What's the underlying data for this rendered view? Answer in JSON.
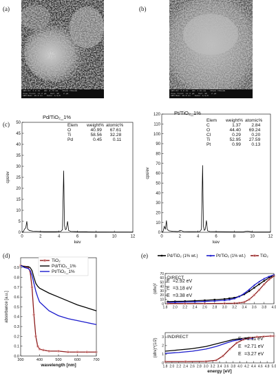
{
  "panels": {
    "a": {
      "label": "(a)"
    },
    "b": {
      "label": "(b)"
    },
    "c": {
      "label": "(c)"
    },
    "d": {
      "label": "(d)"
    },
    "e": {
      "label": "(e)"
    }
  },
  "sem": {
    "a": {
      "info": [
        "SEM HV: 5.0 kV",
        "View field: 11.2 µm",
        "SEM MAG: 10.0 kx",
        "WD: 8.70 mm",
        "Det: SE",
        "2 µm",
        "VEGA3 TESCAN",
        "SEM MAG: 10.0 kx",
        "Date: 1/1/0"
      ]
    },
    "b": {
      "info": [
        "SEM HV: 5.0 kV",
        "View field: 11.2 µm",
        "SEM MAG: 10.0 kx",
        "WD: 7.81 mm",
        "Det: SE",
        "2 µm",
        "VEGA3 TESCAN",
        "SEM MAG: 10.0 kx",
        "Date: 1/1/0"
      ]
    }
  },
  "eds_pd": {
    "title": "Pd/TiO₂_1%",
    "table_header": [
      "Elem",
      "weight%",
      "atomic%"
    ],
    "table_rows": [
      [
        "O",
        "40.99",
        "67.61"
      ],
      [
        "Ti",
        "58.56",
        "32.28"
      ],
      [
        "Pd",
        "0.45",
        "0.11"
      ]
    ]
  },
  "eds_pt": {
    "title": "Pt/TiO₂_1%",
    "table_header": [
      "Elem",
      "weight%",
      "atomic%"
    ],
    "table_rows": [
      [
        "C",
        "1.37",
        "2.84"
      ],
      [
        "O",
        "44.40",
        "69.24"
      ],
      [
        "Cl",
        "0.29",
        "0.20"
      ],
      [
        "Ti",
        "52.95",
        "27.59"
      ],
      [
        "Pt",
        "0.99",
        "0.13"
      ]
    ]
  },
  "chart_data": [
    {
      "id": "eds_pd",
      "type": "line",
      "xlabel": "kev",
      "ylabel": "cps/ev",
      "xlim": [
        0,
        12
      ],
      "ylim": [
        0,
        50
      ],
      "xticks": [
        0,
        2,
        4,
        6,
        8,
        10,
        12
      ],
      "yticks": [
        0,
        5,
        10,
        15,
        20,
        25,
        30,
        35,
        40,
        45,
        50
      ],
      "series": [
        {
          "color": "#000000",
          "x": [
            0,
            0.15,
            0.28,
            0.4,
            0.52,
            0.6,
            0.8,
            1.2,
            1.8,
            2.4,
            3.0,
            3.6,
            4.2,
            4.38,
            4.51,
            4.6,
            4.7,
            4.8,
            4.93,
            5.05,
            5.3,
            6.0,
            7.0,
            8.0,
            9.0,
            10.0,
            11.0,
            12.0
          ],
          "y": [
            0,
            0.4,
            1.5,
            2.0,
            5.0,
            1.5,
            0.8,
            0.5,
            0.4,
            0.3,
            0.3,
            0.3,
            0.4,
            1.2,
            28,
            3.0,
            1.2,
            1.5,
            5.0,
            0.8,
            0.4,
            0.3,
            0.25,
            0.2,
            0.2,
            0.15,
            0.15,
            0.1
          ]
        }
      ]
    },
    {
      "id": "eds_pt",
      "type": "line",
      "xlabel": "kev",
      "ylabel": "cps/ev",
      "xlim": [
        0,
        12
      ],
      "ylim": [
        0,
        120
      ],
      "xticks": [
        0,
        2,
        4,
        6,
        8,
        10,
        12
      ],
      "yticks": [
        0,
        10,
        20,
        30,
        40,
        50,
        60,
        70,
        80,
        90,
        100,
        110,
        120
      ],
      "series": [
        {
          "color": "#000000",
          "x": [
            0,
            0.15,
            0.28,
            0.4,
            0.52,
            0.6,
            0.8,
            1.2,
            1.8,
            2.05,
            2.4,
            3.0,
            3.6,
            4.2,
            4.38,
            4.51,
            4.6,
            4.7,
            4.8,
            4.93,
            5.05,
            5.3,
            6.0,
            7.0,
            8.0,
            9.0,
            9.44,
            10.0,
            11.0,
            12.0
          ],
          "y": [
            0,
            1,
            6,
            3,
            12,
            3,
            1.5,
            1,
            0.8,
            2.0,
            0.8,
            0.7,
            0.7,
            0.8,
            3,
            68,
            6,
            2,
            3,
            12,
            1.5,
            0.8,
            0.7,
            0.6,
            0.5,
            0.5,
            1.2,
            0.4,
            0.3,
            0.3
          ]
        }
      ]
    },
    {
      "id": "absorbance",
      "type": "line",
      "xlabel": "wavelength [nm]",
      "ylabel": "absorbance [a.u.]",
      "xlim": [
        300,
        700
      ],
      "ylim": [
        0,
        1.0
      ],
      "xticks": [
        300,
        400,
        500,
        600,
        700
      ],
      "yticks": [
        0.0,
        0.1,
        0.2,
        0.3,
        0.4,
        0.5,
        0.6,
        0.7,
        0.8,
        0.9
      ],
      "legend_position": "top-right",
      "series": [
        {
          "name": "TiO₂",
          "color": "#8b1a1a",
          "marker": "circle",
          "x": [
            300,
            320,
            340,
            350,
            360,
            370,
            380,
            390,
            400,
            420,
            450,
            500,
            550,
            600,
            650,
            700
          ],
          "y": [
            0.92,
            0.91,
            0.9,
            0.86,
            0.7,
            0.42,
            0.2,
            0.1,
            0.07,
            0.06,
            0.05,
            0.05,
            0.04,
            0.04,
            0.04,
            0.04
          ]
        },
        {
          "name": "Pd/TiO₂_1%",
          "color": "#000000",
          "x": [
            300,
            320,
            340,
            350,
            360,
            370,
            380,
            390,
            400,
            450,
            500,
            550,
            600,
            650,
            700
          ],
          "y": [
            0.92,
            0.91,
            0.91,
            0.9,
            0.87,
            0.8,
            0.74,
            0.71,
            0.69,
            0.64,
            0.6,
            0.56,
            0.52,
            0.49,
            0.46
          ]
        },
        {
          "name": "Pt/TiO₂_1%",
          "color": "#1a1acc",
          "x": [
            300,
            320,
            340,
            350,
            360,
            370,
            380,
            390,
            400,
            450,
            500,
            550,
            600,
            650,
            700
          ],
          "y": [
            0.92,
            0.9,
            0.89,
            0.87,
            0.82,
            0.74,
            0.66,
            0.6,
            0.55,
            0.46,
            0.41,
            0.38,
            0.36,
            0.34,
            0.32
          ]
        }
      ]
    },
    {
      "id": "tauc_direct",
      "type": "line",
      "title": "DIRECT",
      "ylabel": "(αhν)²",
      "xlim": [
        1.8,
        4.0
      ],
      "ylim": [
        0,
        70
      ],
      "xticks": [
        1.8,
        2.0,
        2.2,
        2.4,
        2.6,
        2.8,
        3.0,
        3.2,
        3.4,
        3.6,
        3.8,
        4.0
      ],
      "yticks": [
        0,
        10,
        20,
        30,
        40,
        50,
        60,
        70
      ],
      "legend_position": "top",
      "annotations": [
        "=2.92 eV",
        "=3.18 eV",
        "=3.38 eV"
      ],
      "series": [
        {
          "name": "Pd/TiO₂ (1% wt.)",
          "color": "#000000",
          "marker": "square",
          "x": [
            1.85,
            2.0,
            2.2,
            2.4,
            2.6,
            2.8,
            3.0,
            3.1,
            3.2,
            3.3,
            3.4,
            3.5,
            3.6,
            3.7,
            3.8,
            3.9,
            4.0
          ],
          "y": [
            5,
            5.5,
            6,
            7,
            8,
            9.5,
            11,
            12.5,
            14,
            17,
            22,
            29,
            37,
            45,
            53,
            60,
            66
          ]
        },
        {
          "name": "Pt/TiO₂ (1% wt.)",
          "color": "#1a1acc",
          "marker": "triangle",
          "x": [
            1.85,
            2.0,
            2.2,
            2.4,
            2.6,
            2.8,
            3.0,
            3.1,
            3.2,
            3.3,
            3.4,
            3.5,
            3.6,
            3.7,
            3.8,
            3.9,
            4.0
          ],
          "y": [
            3,
            3.5,
            4,
            4.5,
            5.5,
            6.5,
            8,
            9.5,
            12,
            17,
            24,
            33,
            43,
            51,
            58,
            63,
            67
          ]
        },
        {
          "name": "TiO₂",
          "color": "#8b1a1a",
          "marker": "circle",
          "x": [
            1.85,
            2.2,
            2.6,
            3.0,
            3.2,
            3.3,
            3.4,
            3.5,
            3.6,
            3.7,
            3.8,
            3.9,
            4.0
          ],
          "y": [
            0.5,
            0.5,
            0.6,
            0.8,
            1.2,
            2.0,
            4.0,
            10,
            20,
            32,
            45,
            56,
            64
          ]
        }
      ]
    },
    {
      "id": "tauc_indirect",
      "type": "line",
      "title": "INDIRECT",
      "xlabel": "energy [eV]",
      "ylabel": "(αhν)^(1/2)",
      "xlim": [
        1.8,
        5.0
      ],
      "ylim": [
        0,
        3.5
      ],
      "xticks": [
        1.8,
        2.0,
        2.2,
        2.4,
        2.6,
        2.8,
        3.0,
        3.2,
        3.4,
        3.6,
        3.8,
        4.0,
        4.2,
        4.4,
        4.6,
        4.8,
        5.0
      ],
      "yticks": [
        0,
        1,
        2,
        3
      ],
      "annotations": [
        "=2.11 eV",
        "=2.71 eV",
        "=3.27 eV"
      ],
      "series": [
        {
          "name": "Pd/TiO₂ (1% wt.)",
          "color": "#000000",
          "x": [
            1.8,
            2.2,
            2.6,
            3.0,
            3.3,
            3.6,
            3.8,
            4.0,
            4.2,
            4.4
          ],
          "y": [
            1.35,
            1.5,
            1.65,
            1.9,
            2.2,
            2.5,
            2.7,
            2.8,
            2.88,
            2.92
          ]
        },
        {
          "name": "Pt/TiO₂ (1% wt.)",
          "color": "#1a1acc",
          "x": [
            1.8,
            2.2,
            2.6,
            3.0,
            3.3,
            3.6,
            3.8,
            4.0,
            4.2,
            4.4
          ],
          "y": [
            1.1,
            1.2,
            1.35,
            1.6,
            1.9,
            2.3,
            2.55,
            2.7,
            2.78,
            2.82
          ]
        },
        {
          "name": "TiO₂",
          "color": "#8b1a1a",
          "marker": "circle",
          "x": [
            1.8,
            2.4,
            3.0,
            3.3,
            3.5,
            3.7,
            3.9,
            4.1,
            4.3,
            4.5,
            4.7,
            4.9,
            5.0
          ],
          "y": [
            0.15,
            0.15,
            0.18,
            0.3,
            0.8,
            1.6,
            2.3,
            2.7,
            2.9,
            3.0,
            3.05,
            3.1,
            3.1
          ]
        }
      ]
    }
  ]
}
